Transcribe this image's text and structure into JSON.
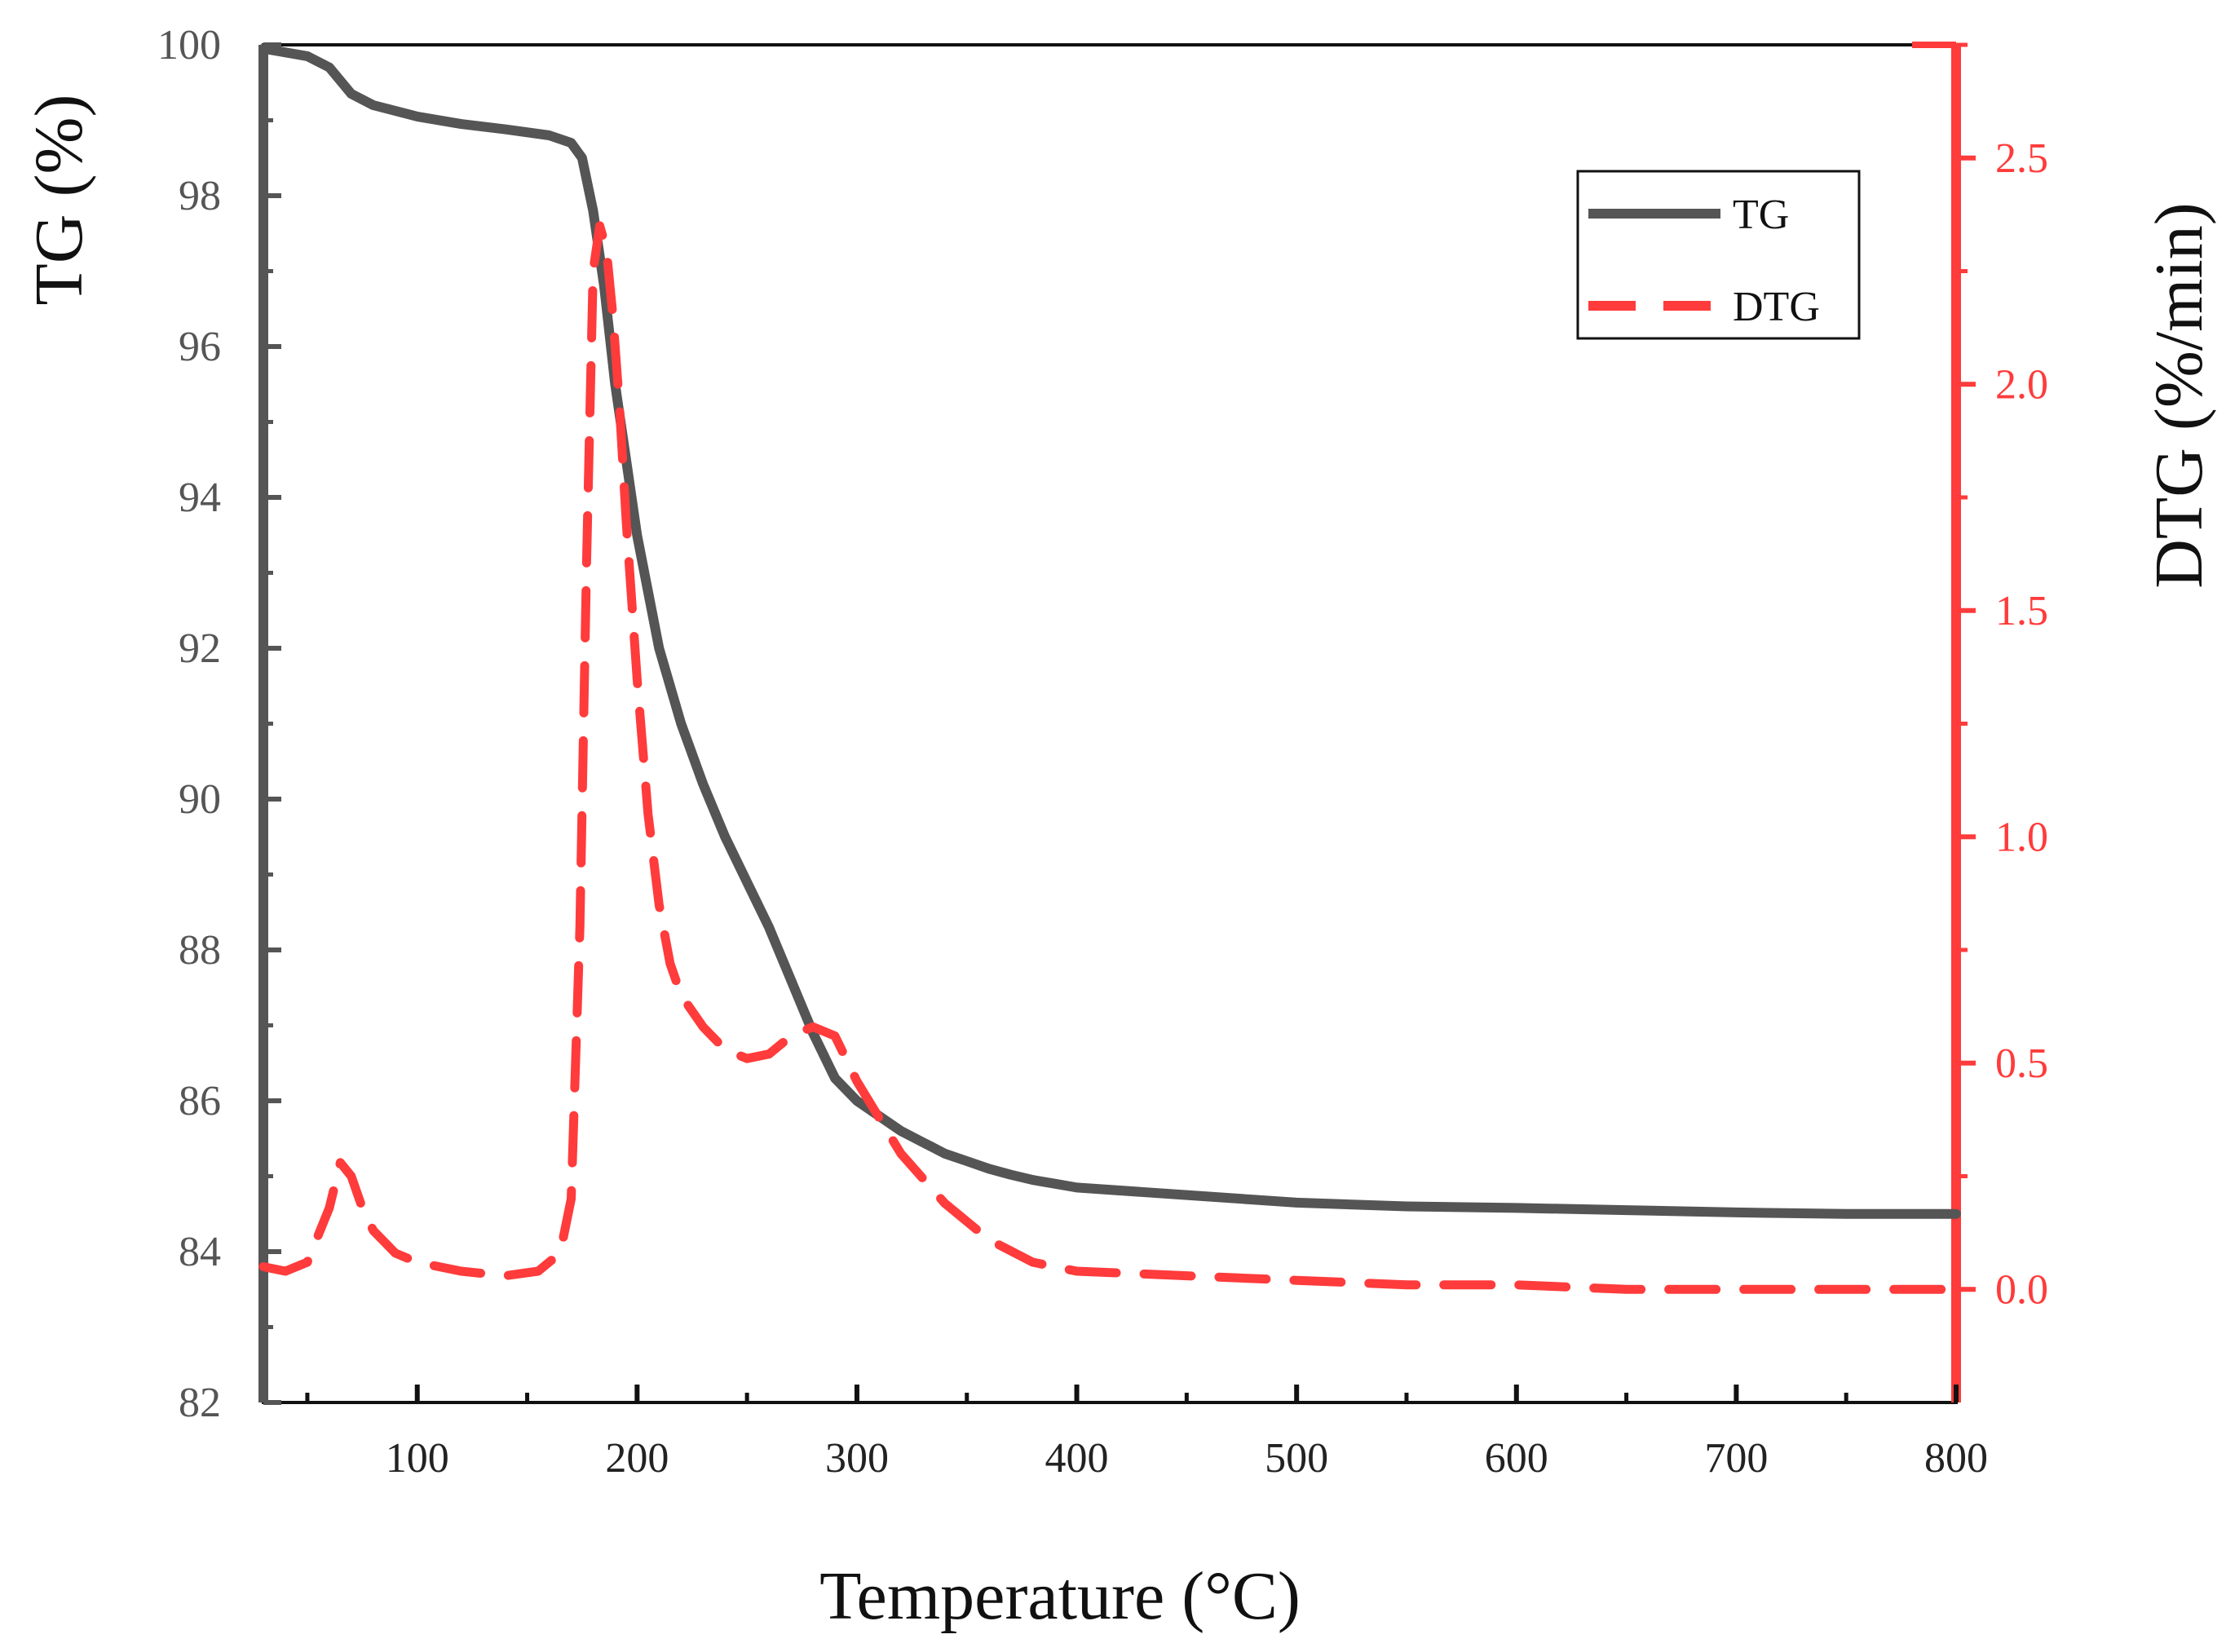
{
  "chart_data": {
    "type": "line",
    "title": "",
    "xlabel": "Temperature (°C)",
    "ylabel_left": "TG (%)",
    "ylabel_right": "DTG (%/min)",
    "xlim": [
      30,
      800
    ],
    "ylim_left": [
      82,
      100
    ],
    "ylim_right": [
      -0.25,
      2.75
    ],
    "x_ticks": [
      100,
      200,
      300,
      400,
      500,
      600,
      700,
      800
    ],
    "x_tick_labels": [
      "100",
      "200",
      "300",
      "400",
      "500",
      "600",
      "700",
      "800"
    ],
    "y_left_ticks": [
      82,
      84,
      86,
      88,
      90,
      92,
      94,
      96,
      98,
      100
    ],
    "y_left_tick_labels": [
      "82",
      "84",
      "86",
      "88",
      "90",
      "92",
      "94",
      "96",
      "98",
      "100"
    ],
    "y_right_ticks": [
      0.0,
      0.5,
      1.0,
      1.5,
      2.0,
      2.5
    ],
    "y_right_tick_labels": [
      "0.0",
      "0.5",
      "1.0",
      "1.5",
      "2.0",
      "2.5"
    ],
    "grid": false,
    "legend_position": "top-right",
    "colors": {
      "tg": "#555555",
      "dtg": "#ff3b3b",
      "axis_left": "#555555",
      "axis_right": "#ff3b3b",
      "frame": "#111111"
    },
    "series": [
      {
        "name": "TG",
        "axis": "left",
        "style": "solid",
        "x": [
          30,
          50,
          60,
          70,
          80,
          100,
          120,
          140,
          160,
          170,
          175,
          180,
          185,
          190,
          195,
          200,
          210,
          220,
          230,
          240,
          250,
          260,
          270,
          280,
          290,
          300,
          310,
          320,
          330,
          340,
          350,
          360,
          370,
          380,
          390,
          400,
          450,
          500,
          550,
          600,
          650,
          700,
          750,
          800
        ],
        "values": [
          99.95,
          99.85,
          99.7,
          99.35,
          99.2,
          99.05,
          98.95,
          98.88,
          98.8,
          98.7,
          98.5,
          97.8,
          96.8,
          95.5,
          94.5,
          93.5,
          92.0,
          91.0,
          90.2,
          89.5,
          88.9,
          88.3,
          87.6,
          86.9,
          86.3,
          86.0,
          85.8,
          85.6,
          85.45,
          85.3,
          85.2,
          85.1,
          85.02,
          84.95,
          84.9,
          84.85,
          84.75,
          84.65,
          84.6,
          84.58,
          84.55,
          84.52,
          84.5,
          84.5
        ]
      },
      {
        "name": "DTG",
        "axis": "right",
        "style": "dashed",
        "x": [
          30,
          40,
          50,
          60,
          65,
          70,
          75,
          80,
          90,
          100,
          120,
          140,
          155,
          165,
          170,
          174,
          177,
          180,
          183,
          186,
          189,
          192,
          195,
          200,
          205,
          210,
          215,
          220,
          230,
          240,
          250,
          260,
          270,
          280,
          290,
          300,
          320,
          340,
          360,
          380,
          400,
          450,
          500,
          550,
          600,
          650,
          700,
          750,
          800
        ],
        "values": [
          0.05,
          0.04,
          0.06,
          0.18,
          0.28,
          0.25,
          0.18,
          0.13,
          0.08,
          0.06,
          0.04,
          0.03,
          0.04,
          0.08,
          0.2,
          0.8,
          1.6,
          2.25,
          2.35,
          2.3,
          2.15,
          1.95,
          1.7,
          1.35,
          1.05,
          0.85,
          0.72,
          0.65,
          0.58,
          0.53,
          0.51,
          0.52,
          0.56,
          0.58,
          0.56,
          0.46,
          0.3,
          0.19,
          0.11,
          0.06,
          0.04,
          0.03,
          0.02,
          0.01,
          0.01,
          0.0,
          0.0,
          0.0,
          0.0
        ]
      }
    ]
  }
}
